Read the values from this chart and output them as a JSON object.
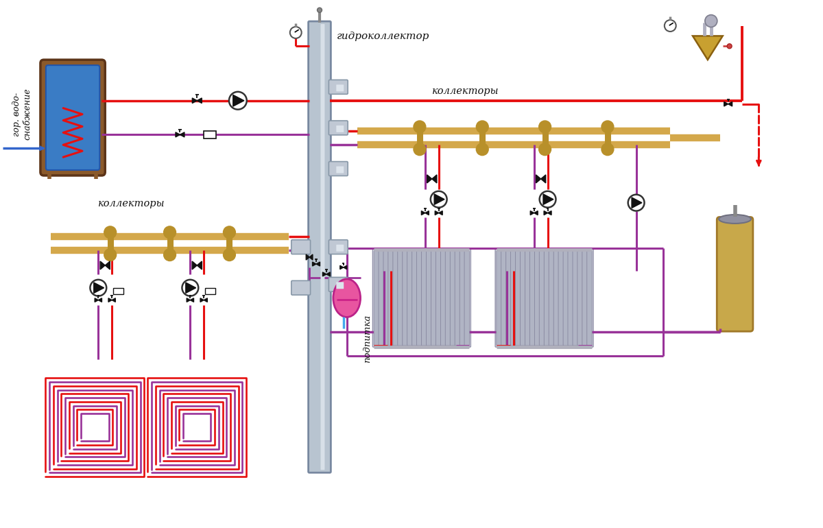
{
  "bg_color": "#ffffff",
  "colors": {
    "hot": "#e61010",
    "cold_blue": "#3366cc",
    "return_purple": "#993399",
    "collector_gold": "#d4a84b",
    "collector_dark": "#b8902a",
    "boiler_blue": "#3a7cc5",
    "boiler_frame": "#8B5a2b",
    "boiler_dark": "#5c3418",
    "gc_body": "#a0a8b8",
    "gc_port": "#8898aa",
    "gc_port_light": "#c8d0d8",
    "black": "#111111",
    "dark_gray": "#333333",
    "radiator_gray": "#b0b4c4",
    "radiator_bg": "#c8ccd8",
    "expansion_pink": "#e855a0",
    "separator_gold": "#c8a84a",
    "filter_gold": "#c8a030",
    "text_dark": "#111111",
    "makeup_blue": "#44aaee",
    "purple_line": "#993399",
    "red_line": "#e61010",
    "checkv_gray": "#888888"
  },
  "labels": {
    "gidrokollector": "гидроколлектор",
    "kollektory_right": "коллекторы",
    "kollektory_left": "коллекторы",
    "gor_vodo": "гор. водо-\nснабжение",
    "podpitka": "подпитка"
  }
}
